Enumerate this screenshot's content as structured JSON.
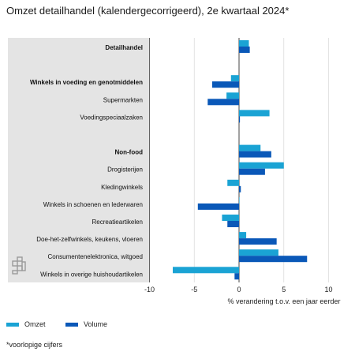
{
  "title": "Omzet detailhandel (kalendergecorrigeerd), 2e kwartaal 2024*",
  "footnote": "*voorlopige cijfers",
  "chart_data": {
    "type": "bar",
    "orientation": "horizontal",
    "title": "Omzet detailhandel (kalendergecorrigeerd), 2e kwartaal 2024*",
    "xlabel": "% verandering t.o.v. een jaar eerder",
    "ylabel": "",
    "xlim": [
      -10,
      10
    ],
    "xticks": [
      -10,
      -5,
      0,
      5,
      10
    ],
    "grid": true,
    "legend_position": "bottom-left",
    "categories": [
      {
        "label": "Detailhandel",
        "bold": true
      },
      {
        "label": "",
        "bold": false
      },
      {
        "label": "Winkels in voeding en genotmiddelen",
        "bold": true
      },
      {
        "label": "Supermarkten",
        "bold": false
      },
      {
        "label": "Voedingspeciaalzaken",
        "bold": false
      },
      {
        "label": "",
        "bold": false
      },
      {
        "label": "Non-food",
        "bold": true
      },
      {
        "label": "Drogisterijen",
        "bold": false
      },
      {
        "label": "Kledingwinkels",
        "bold": false
      },
      {
        "label": "Winkels in schoenen en lederwaren",
        "bold": false
      },
      {
        "label": "Recreatieartikelen",
        "bold": false
      },
      {
        "label": "Doe-het-zelfwinkels, keukens, vloeren",
        "bold": false
      },
      {
        "label": "Consumentenelektronica, witgoed",
        "bold": false
      },
      {
        "label": "Winkels in overige huishoudartikelen",
        "bold": false
      }
    ],
    "series": [
      {
        "name": "Omzet",
        "color": "#1aa3d4",
        "values": [
          1.1,
          null,
          -0.9,
          -1.4,
          3.4,
          null,
          2.4,
          5.0,
          -1.3,
          0.0,
          -1.9,
          0.8,
          4.4,
          -7.4
        ]
      },
      {
        "name": "Volume",
        "color": "#0a58b8",
        "values": [
          1.2,
          null,
          -3.0,
          -3.5,
          0.1,
          null,
          3.6,
          2.9,
          0.2,
          -4.6,
          -1.3,
          4.2,
          7.6,
          -0.5
        ]
      }
    ]
  },
  "colors": {
    "label_panel": "#e4e4e4",
    "gridline": "#dcdcdc",
    "axis": "#444444"
  },
  "icon": "cbs-logo-icon"
}
